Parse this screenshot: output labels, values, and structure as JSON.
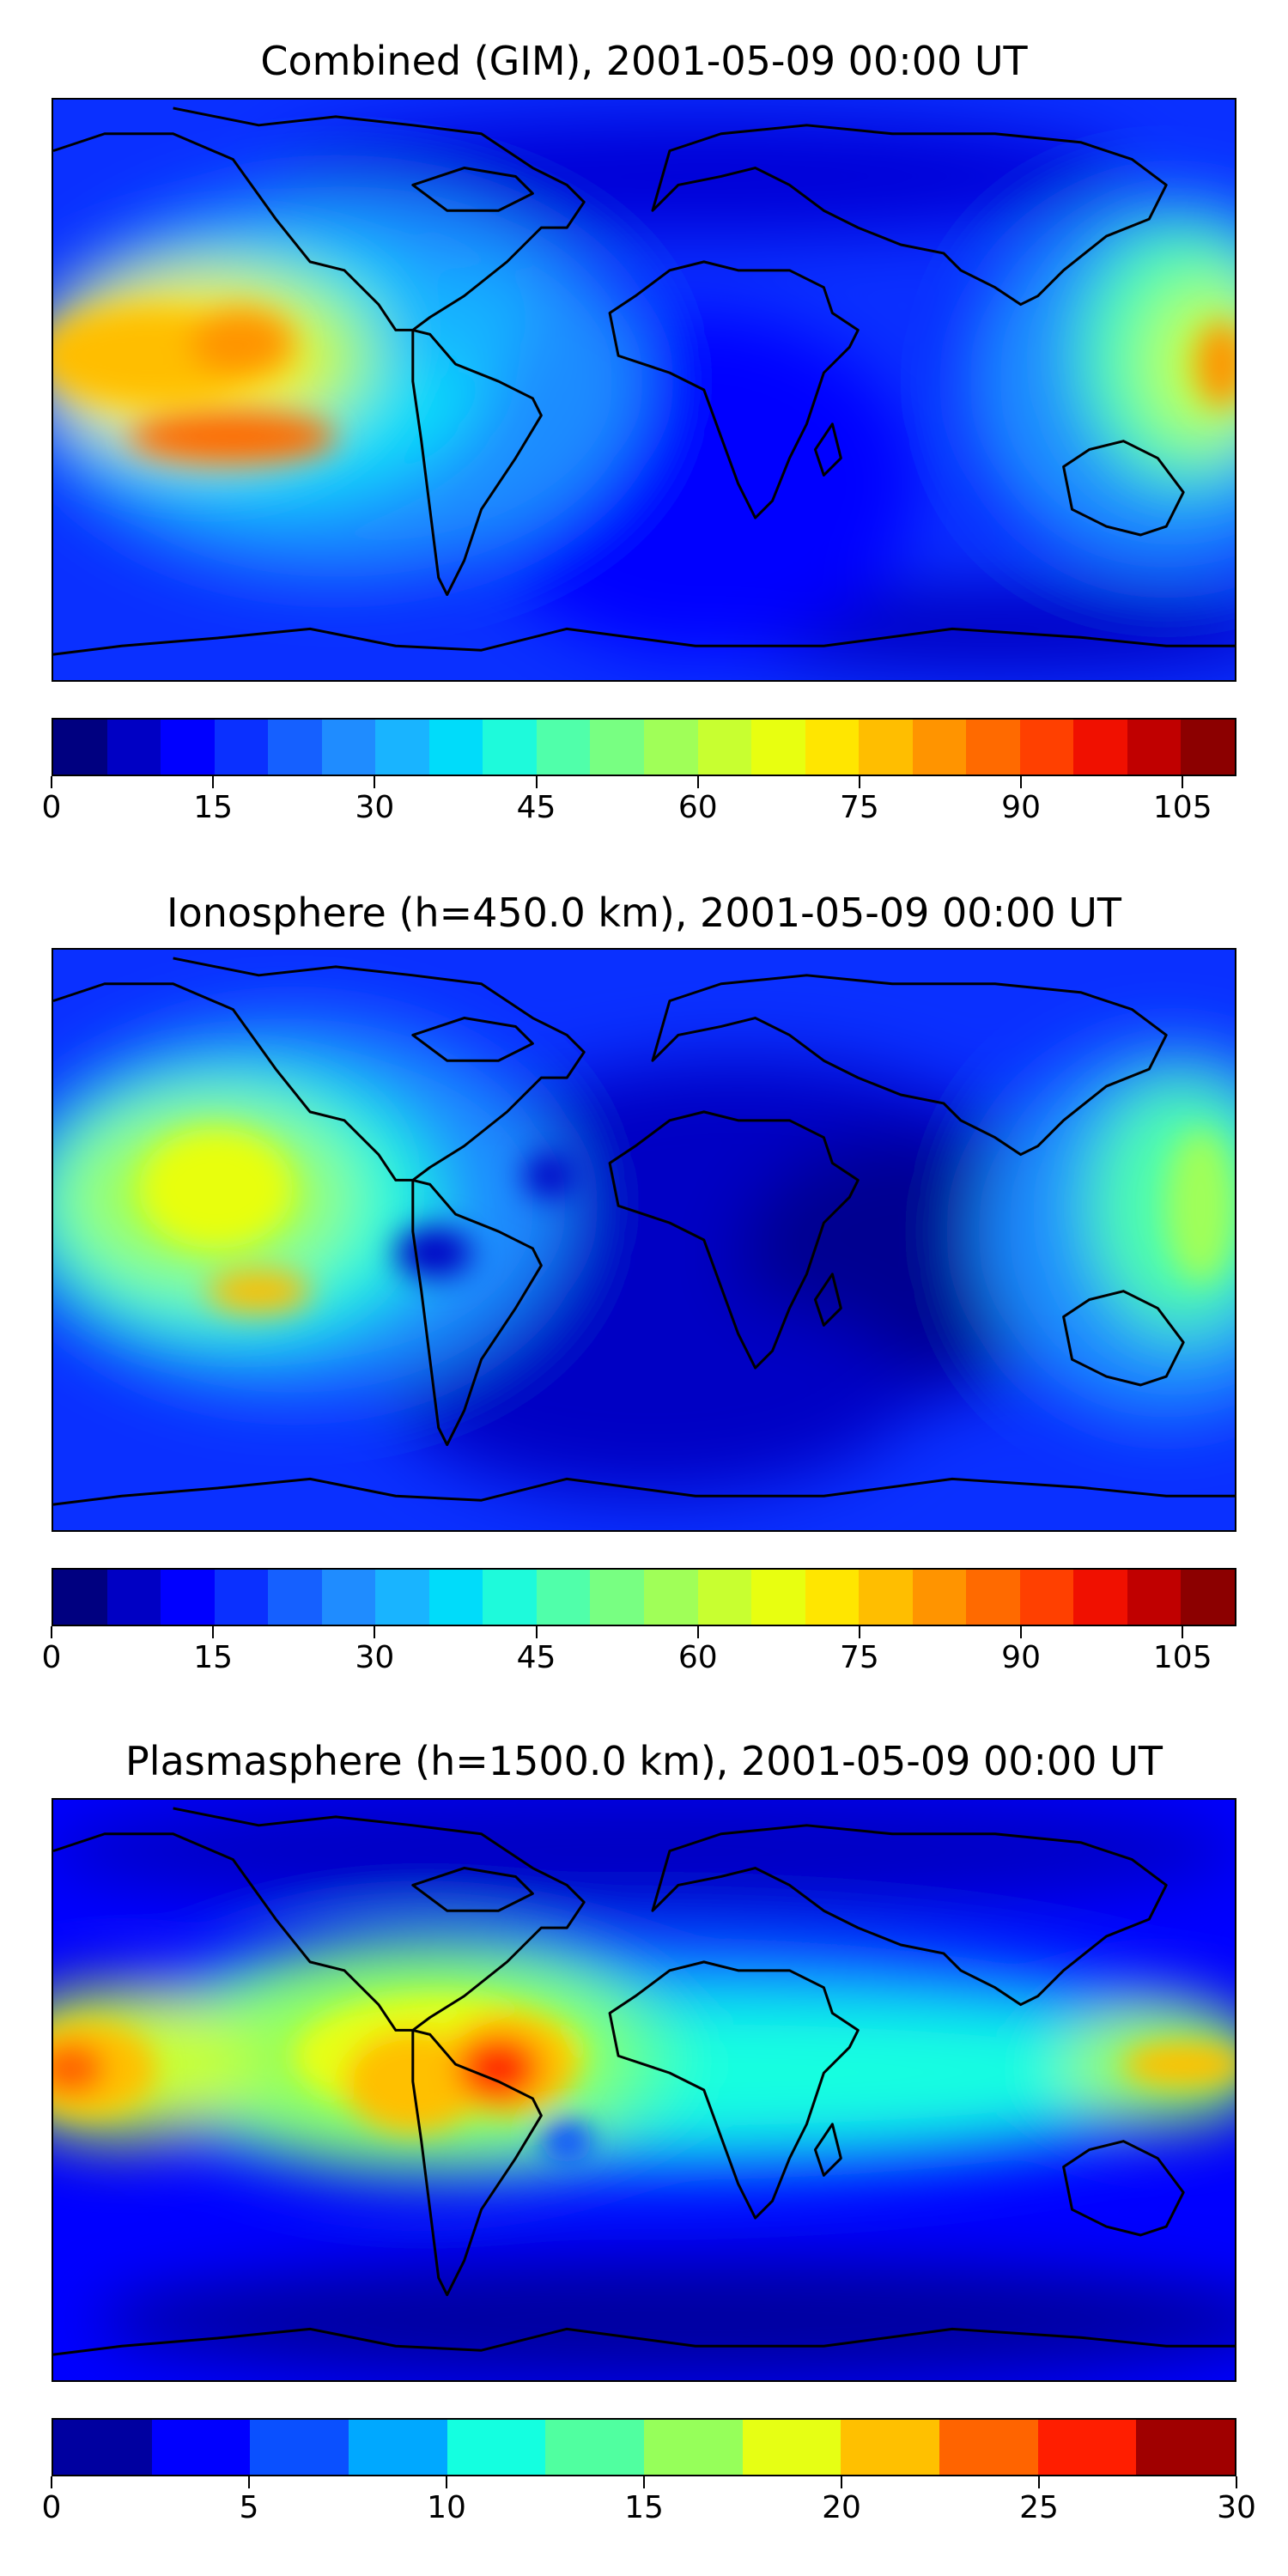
{
  "panels": [
    {
      "title": "Combined (GIM), 2001-05-09 00:00 UT",
      "colorbar": {
        "ticks": [
          0,
          15,
          30,
          45,
          60,
          75,
          90,
          105
        ],
        "tick_labels": [
          "0",
          "15",
          "30",
          "45",
          "60",
          "75",
          "90",
          "105"
        ],
        "range": [
          0,
          110
        ],
        "colors": [
          "#000080",
          "#0000c4",
          "#0000ff",
          "#0a30ff",
          "#1560ff",
          "#1f8cff",
          "#19b4ff",
          "#00dcfa",
          "#1efadb",
          "#50ffaa",
          "#78ff82",
          "#a0ff58",
          "#c8ff30",
          "#e8ff10",
          "#ffe600",
          "#ffbe00",
          "#ff9400",
          "#ff6a00",
          "#ff4000",
          "#f01000",
          "#c00000",
          "#8c0000"
        ]
      }
    },
    {
      "title": "Ionosphere  (h=450.0 km), 2001-05-09 00:00 UT",
      "colorbar": {
        "ticks": [
          0,
          15,
          30,
          45,
          60,
          75,
          90,
          105
        ],
        "tick_labels": [
          "0",
          "15",
          "30",
          "45",
          "60",
          "75",
          "90",
          "105"
        ],
        "range": [
          0,
          110
        ],
        "colors": [
          "#000080",
          "#0000c4",
          "#0000ff",
          "#0a30ff",
          "#1560ff",
          "#1f8cff",
          "#19b4ff",
          "#00dcfa",
          "#1efadb",
          "#50ffaa",
          "#78ff82",
          "#a0ff58",
          "#c8ff30",
          "#e8ff10",
          "#ffe600",
          "#ffbe00",
          "#ff9400",
          "#ff6a00",
          "#ff4000",
          "#f01000",
          "#c00000",
          "#8c0000"
        ]
      }
    },
    {
      "title": "Plasmasphere (h=1500.0 km), 2001-05-09 00:00 UT",
      "colorbar": {
        "ticks": [
          0,
          5,
          10,
          15,
          20,
          25,
          30
        ],
        "tick_labels": [
          "0",
          "5",
          "10",
          "15",
          "20",
          "25",
          "30"
        ],
        "range": [
          0,
          30
        ],
        "colors": [
          "#0000a0",
          "#0000ff",
          "#0a50ff",
          "#00a8ff",
          "#14ffe0",
          "#50ffa0",
          "#96ff5a",
          "#e6ff14",
          "#ffc000",
          "#ff6400",
          "#ff1e00",
          "#a00000"
        ]
      }
    }
  ]
}
